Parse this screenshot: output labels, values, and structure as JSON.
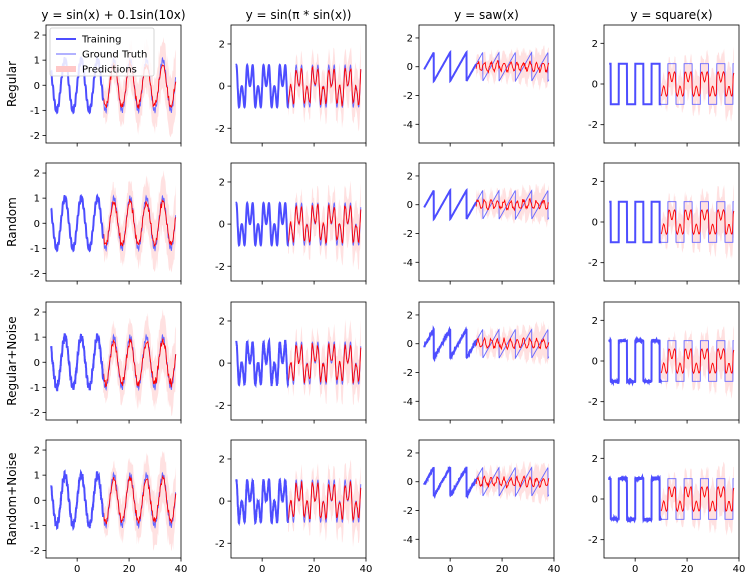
{
  "chart_data": {
    "type": "line",
    "grid": false,
    "legend_placement": "top-left of first panel",
    "columns": [
      {
        "title": "$y = \\sin(x) + 0.1\\sin(10x)$",
        "fn": "sinmix",
        "ylim": [
          -2.3,
          2.4
        ],
        "yticks": [
          -2,
          -1,
          0,
          1,
          2
        ]
      },
      {
        "title": "$y = \\sin(\\pi * \\sin(x))$",
        "fn": "sinpisin",
        "ylim": [
          -2.7,
          2.9
        ],
        "yticks": [
          -2,
          0,
          2
        ]
      },
      {
        "title": "$y = saw(x)$",
        "fn": "saw",
        "ylim": [
          -5.3,
          2.9
        ],
        "yticks": [
          -4,
          -2,
          0,
          2
        ]
      },
      {
        "title": "$y = square(x)$",
        "fn": "square",
        "ylim": [
          -2.9,
          2.9
        ],
        "yticks": [
          -2,
          0,
          2
        ]
      }
    ],
    "rows": [
      {
        "label": "Regular",
        "noise": 0
      },
      {
        "label": "Random",
        "noise": 0
      },
      {
        "label": "Regular+Noise",
        "noise": 0.05
      },
      {
        "label": "Random+Noise",
        "noise": 0.05
      }
    ],
    "xlim": [
      -12,
      40
    ],
    "xticks": [
      0,
      20,
      40
    ],
    "training_x_range": [
      -10,
      10
    ],
    "test_x_range": [
      10,
      38
    ],
    "series": [
      {
        "name": "Training",
        "color": "#4d4dff"
      },
      {
        "name": "Ground Truth",
        "color": "#6666ff"
      },
      {
        "name": "Predictions",
        "color": "#ff0000",
        "band_color": "#ffc8c8"
      }
    ]
  },
  "display": {
    "col_titles": [
      "y = sin(x) + 0.1sin(10x)",
      "y = sin(π * sin(x))",
      "y = saw(x)",
      "y = square(x)"
    ],
    "row_labels": [
      "Regular",
      "Random",
      "Regular+Noise",
      "Random+Noise"
    ],
    "legend": [
      "Training",
      "Ground Truth",
      "Predictions"
    ]
  }
}
